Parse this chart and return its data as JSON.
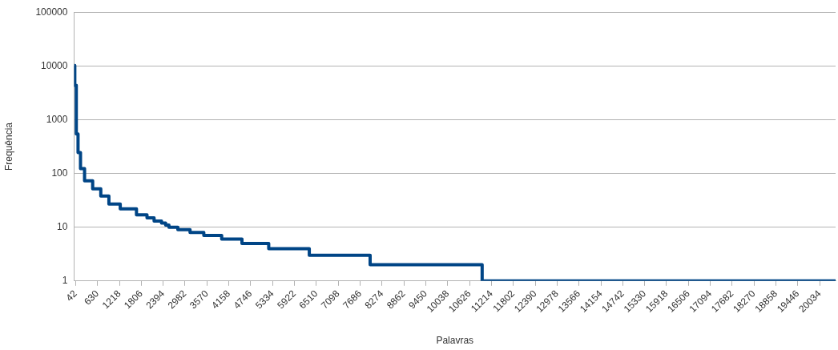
{
  "chart_data": {
    "type": "step",
    "xlabel": "Palavras",
    "ylabel": "Frequência",
    "log": "y",
    "grid": "y",
    "legend": false,
    "marker": "none",
    "line_style": "solid",
    "xlim": [
      0,
      20460
    ],
    "ylim": [
      1,
      100000
    ],
    "xticks": [
      42,
      630,
      1218,
      1806,
      2394,
      2982,
      3570,
      4158,
      4746,
      5334,
      5922,
      6510,
      7098,
      7686,
      8274,
      8862,
      9450,
      10038,
      10626,
      11214,
      11802,
      12390,
      12978,
      13566,
      14154,
      14742,
      15330,
      15918,
      16506,
      17094,
      17682,
      18270,
      18858,
      19446,
      20034
    ],
    "yticks": [
      1,
      10,
      100,
      1000,
      10000,
      100000
    ],
    "series": [
      {
        "color": "#004586",
        "x": [
          1,
          20,
          60,
          107,
          173,
          282,
          500,
          718,
          936,
          1241,
          1677,
          1960,
          2150,
          2350,
          2460,
          2549,
          2789,
          3116,
          3486,
          3966,
          4511,
          5230,
          6320,
          7955,
          10964,
          20460
        ],
        "values": [
          10200,
          4350,
          545,
          245,
          123,
          73,
          52,
          38,
          27,
          22,
          17,
          15,
          13,
          12,
          11,
          10,
          9,
          8,
          7,
          6,
          5,
          4,
          3,
          2,
          1,
          1
        ]
      }
    ]
  }
}
